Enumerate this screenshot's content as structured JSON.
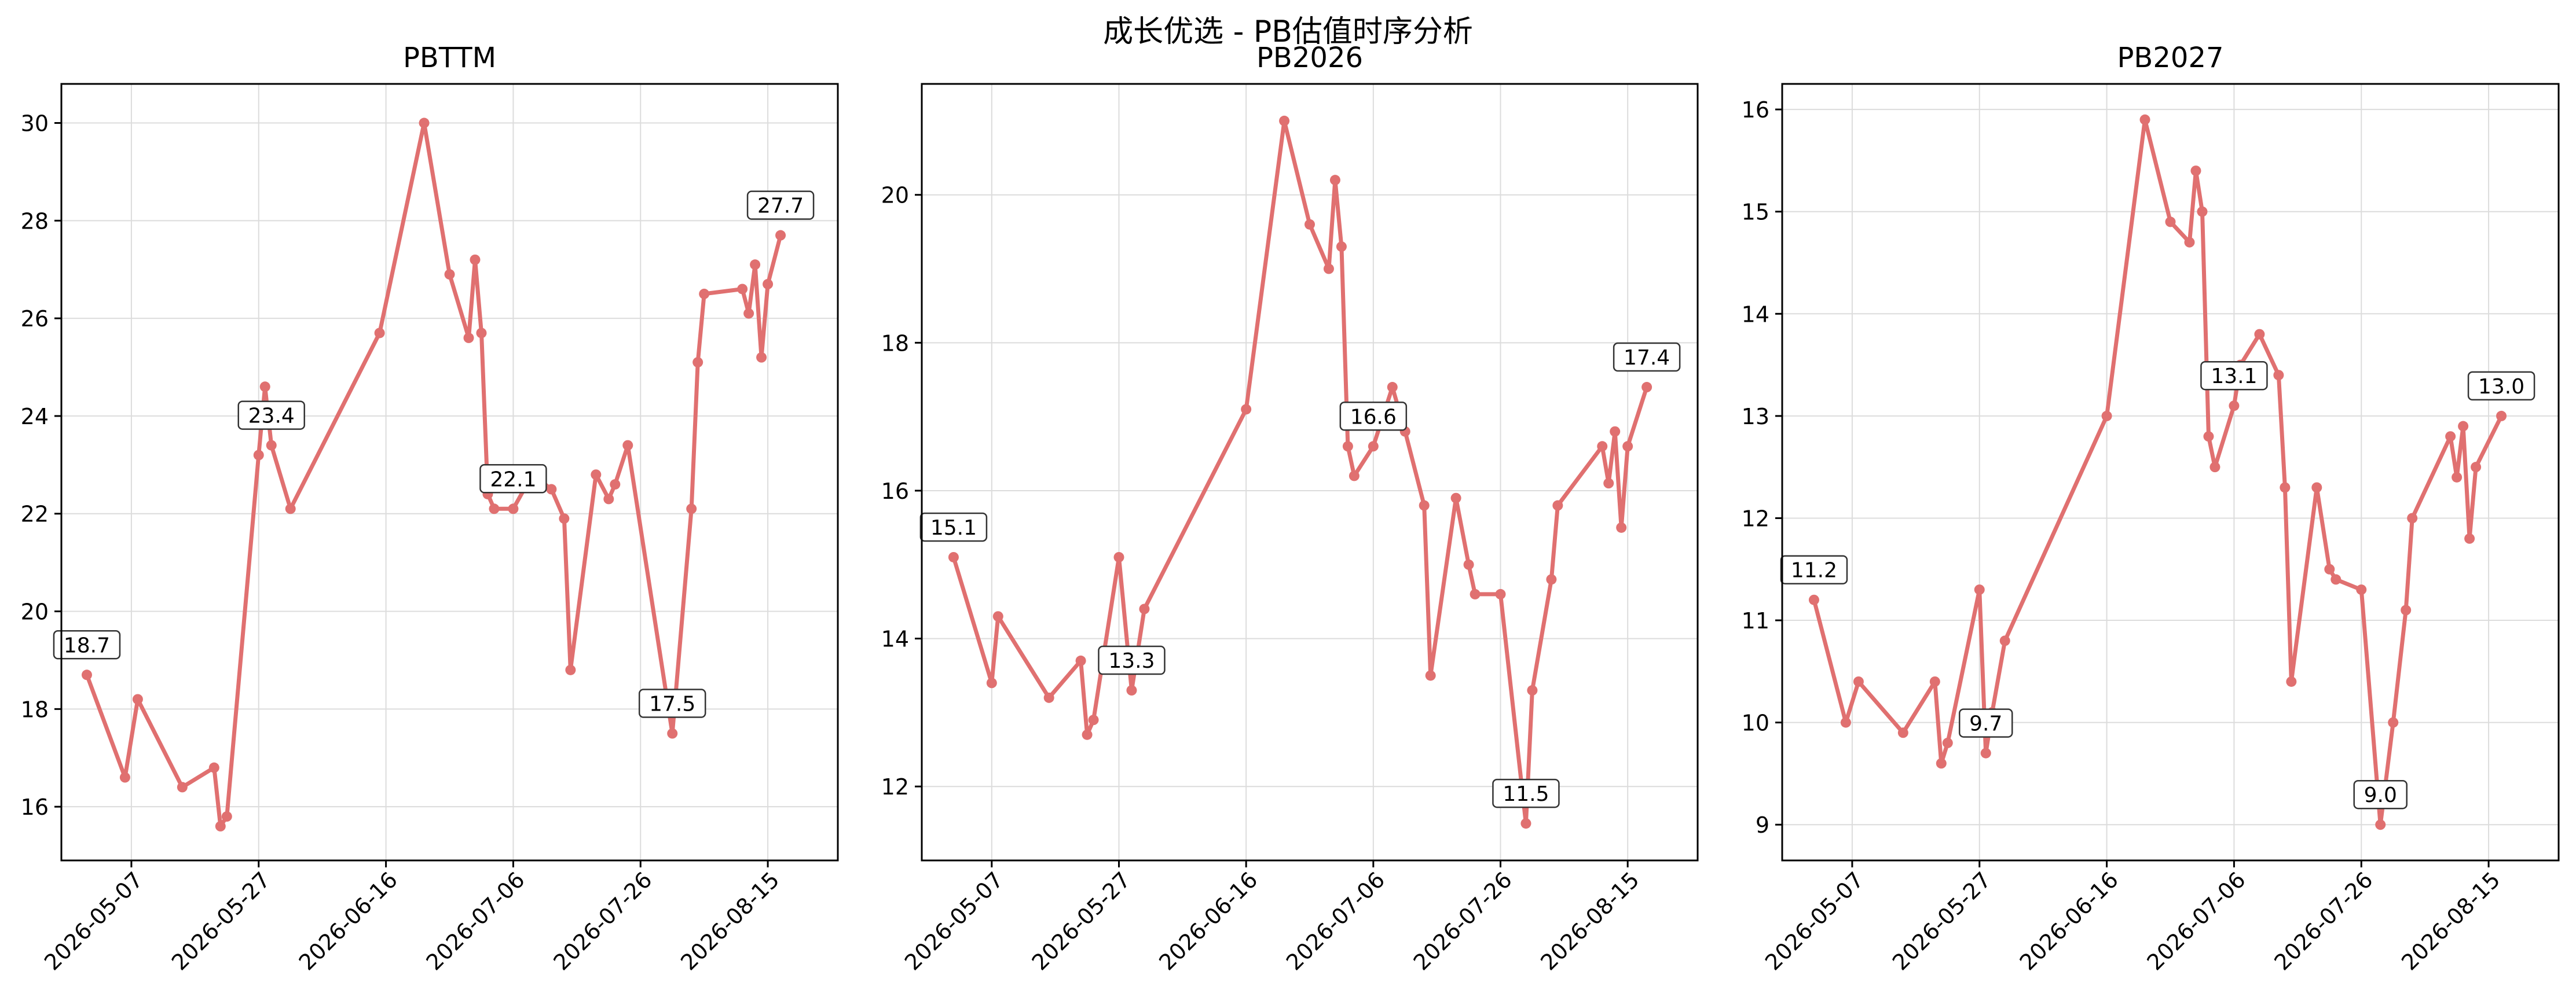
{
  "figure": {
    "suptitle": "成长优选 - PB估值时序分析",
    "line_color": "#e07070",
    "grid_color": "#dcdcdc"
  },
  "chart_data": [
    {
      "type": "line",
      "title": "PBTTM",
      "grid": true,
      "xlabel": "",
      "ylabel": "",
      "ylim": [
        14.9,
        30.8
      ],
      "yticks": [
        16,
        18,
        20,
        22,
        24,
        26,
        28,
        30
      ],
      "xlim": [
        "2026-04-26",
        "2026-08-26"
      ],
      "xticks": [
        "2026-05-07",
        "2026-05-27",
        "2026-06-16",
        "2026-07-06",
        "2026-07-26",
        "2026-08-15"
      ],
      "series": [
        {
          "x": [
            "2026-04-30",
            "2026-05-06",
            "2026-05-08",
            "2026-05-15",
            "2026-05-20",
            "2026-05-21",
            "2026-05-22",
            "2026-05-27",
            "2026-05-28",
            "2026-05-29",
            "2026-06-01",
            "2026-06-15",
            "2026-06-22",
            "2026-06-26",
            "2026-06-29",
            "2026-06-30",
            "2026-07-01",
            "2026-07-02",
            "2026-07-03",
            "2026-07-06",
            "2026-07-09",
            "2026-07-12",
            "2026-07-14",
            "2026-07-15",
            "2026-07-19",
            "2026-07-21",
            "2026-07-22",
            "2026-07-24",
            "2026-07-31",
            "2026-08-03",
            "2026-08-04",
            "2026-08-05",
            "2026-08-11",
            "2026-08-12",
            "2026-08-13",
            "2026-08-14",
            "2026-08-15",
            "2026-08-17"
          ],
          "values": [
            18.7,
            16.6,
            18.2,
            16.4,
            16.8,
            15.6,
            15.8,
            23.2,
            24.6,
            23.4,
            22.1,
            25.7,
            30.0,
            26.9,
            25.6,
            27.2,
            25.7,
            22.4,
            22.1,
            22.1,
            22.8,
            22.5,
            21.9,
            18.8,
            22.8,
            22.3,
            22.6,
            23.4,
            17.5,
            22.1,
            25.1,
            26.5,
            26.6,
            26.1,
            27.1,
            25.2,
            26.7,
            27.7
          ]
        }
      ],
      "annotations": [
        {
          "x": "2026-04-30",
          "y": 18.7,
          "text": "18.7"
        },
        {
          "x": "2026-05-29",
          "y": 23.4,
          "text": "23.4"
        },
        {
          "x": "2026-07-06",
          "y": 22.1,
          "text": "22.1"
        },
        {
          "x": "2026-07-31",
          "y": 17.5,
          "text": "17.5"
        },
        {
          "x": "2026-08-17",
          "y": 27.7,
          "text": "27.7"
        }
      ]
    },
    {
      "type": "line",
      "title": "PB2026",
      "grid": true,
      "xlabel": "",
      "ylabel": "",
      "ylim": [
        11.0,
        21.5
      ],
      "yticks": [
        12,
        14,
        16,
        18,
        20
      ],
      "xlim": [
        "2026-04-26",
        "2026-08-26"
      ],
      "xticks": [
        "2026-05-07",
        "2026-05-27",
        "2026-06-16",
        "2026-07-06",
        "2026-07-26",
        "2026-08-15"
      ],
      "series": [
        {
          "x": [
            "2026-05-01",
            "2026-05-07",
            "2026-05-08",
            "2026-05-16",
            "2026-05-21",
            "2026-05-22",
            "2026-05-23",
            "2026-05-27",
            "2026-05-29",
            "2026-05-31",
            "2026-06-16",
            "2026-06-22",
            "2026-06-26",
            "2026-06-29",
            "2026-06-30",
            "2026-07-01",
            "2026-07-02",
            "2026-07-03",
            "2026-07-06",
            "2026-07-09",
            "2026-07-11",
            "2026-07-14",
            "2026-07-15",
            "2026-07-19",
            "2026-07-21",
            "2026-07-22",
            "2026-07-26",
            "2026-07-30",
            "2026-07-31",
            "2026-08-03",
            "2026-08-04",
            "2026-08-11",
            "2026-08-12",
            "2026-08-13",
            "2026-08-14",
            "2026-08-15",
            "2026-08-18"
          ],
          "values": [
            15.1,
            13.4,
            14.3,
            13.2,
            13.7,
            12.7,
            12.9,
            15.1,
            13.3,
            14.4,
            17.1,
            21.0,
            19.6,
            19.0,
            20.2,
            19.3,
            16.6,
            16.2,
            16.6,
            17.4,
            16.8,
            15.8,
            13.5,
            15.9,
            15.0,
            14.6,
            14.6,
            11.5,
            13.3,
            14.8,
            15.8,
            16.6,
            16.1,
            16.8,
            15.5,
            16.6,
            17.4
          ]
        }
      ],
      "annotations": [
        {
          "x": "2026-05-01",
          "y": 15.1,
          "text": "15.1"
        },
        {
          "x": "2026-05-29",
          "y": 13.3,
          "text": "13.3"
        },
        {
          "x": "2026-07-06",
          "y": 16.6,
          "text": "16.6"
        },
        {
          "x": "2026-07-30",
          "y": 11.5,
          "text": "11.5"
        },
        {
          "x": "2026-08-18",
          "y": 17.4,
          "text": "17.4"
        }
      ]
    },
    {
      "type": "line",
      "title": "PB2027",
      "grid": true,
      "xlabel": "",
      "ylabel": "",
      "ylim": [
        8.65,
        16.25
      ],
      "yticks": [
        9,
        10,
        11,
        12,
        13,
        14,
        15,
        16
      ],
      "xlim": [
        "2026-04-26",
        "2026-08-26"
      ],
      "xticks": [
        "2026-05-07",
        "2026-05-27",
        "2026-06-16",
        "2026-07-06",
        "2026-07-26",
        "2026-08-15"
      ],
      "series": [
        {
          "x": [
            "2026-05-01",
            "2026-05-06",
            "2026-05-08",
            "2026-05-15",
            "2026-05-20",
            "2026-05-21",
            "2026-05-22",
            "2026-05-27",
            "2026-05-28",
            "2026-05-29",
            "2026-05-31",
            "2026-06-16",
            "2026-06-22",
            "2026-06-26",
            "2026-06-29",
            "2026-06-30",
            "2026-07-01",
            "2026-07-02",
            "2026-07-03",
            "2026-07-06",
            "2026-07-07",
            "2026-07-10",
            "2026-07-13",
            "2026-07-14",
            "2026-07-15",
            "2026-07-19",
            "2026-07-21",
            "2026-07-22",
            "2026-07-26",
            "2026-07-29",
            "2026-07-31",
            "2026-08-02",
            "2026-08-03",
            "2026-08-09",
            "2026-08-10",
            "2026-08-11",
            "2026-08-12",
            "2026-08-13",
            "2026-08-17"
          ],
          "values": [
            11.2,
            10.0,
            10.4,
            9.9,
            10.4,
            9.6,
            9.8,
            11.3,
            9.7,
            10.1,
            10.8,
            13.0,
            15.9,
            14.9,
            14.7,
            15.4,
            15.0,
            12.8,
            12.5,
            13.1,
            13.5,
            13.8,
            13.4,
            12.3,
            10.4,
            12.3,
            11.5,
            11.4,
            11.3,
            9.0,
            10.0,
            11.1,
            12.0,
            12.8,
            12.4,
            12.9,
            11.8,
            12.5,
            13.0
          ]
        }
      ],
      "annotations": [
        {
          "x": "2026-05-01",
          "y": 11.2,
          "text": "11.2"
        },
        {
          "x": "2026-05-28",
          "y": 9.7,
          "text": "9.7"
        },
        {
          "x": "2026-07-06",
          "y": 13.1,
          "text": "13.1"
        },
        {
          "x": "2026-07-29",
          "y": 9.0,
          "text": "9.0"
        },
        {
          "x": "2026-08-17",
          "y": 13.0,
          "text": "13.0"
        }
      ]
    }
  ]
}
